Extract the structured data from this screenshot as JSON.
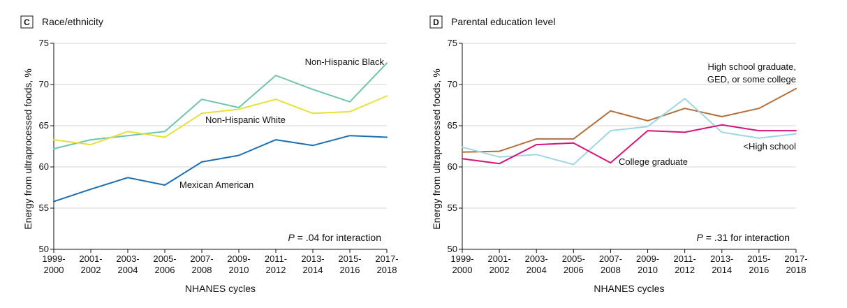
{
  "colors": {
    "teal": "#6fc4ae",
    "yellow": "#e6e13a",
    "blue": "#1b6fb0",
    "brown": "#b26f3c",
    "light_blue": "#9fd6e4",
    "magenta": "#d6137a"
  },
  "chart_data": [
    {
      "type": "line",
      "panel_letter": "C",
      "title": "Race/ethnicity",
      "xlabel": "NHANES cycles",
      "ylabel": "Energy from ultraprocessed foods, %",
      "x_ticks": [
        {
          "top": "1999-",
          "bottom": "2000"
        },
        {
          "top": "2001-",
          "bottom": "2002"
        },
        {
          "top": "2003-",
          "bottom": "2004"
        },
        {
          "top": "2005-",
          "bottom": "2006"
        },
        {
          "top": "2007-",
          "bottom": "2008"
        },
        {
          "top": "2009-",
          "bottom": "2010"
        },
        {
          "top": "2011-",
          "bottom": "2012"
        },
        {
          "top": "2013-",
          "bottom": "2014"
        },
        {
          "top": "2015-",
          "bottom": "2016"
        },
        {
          "top": "2017-",
          "bottom": "2018"
        }
      ],
      "y_ticks": [
        "50",
        "55",
        "60",
        "65",
        "70",
        "75"
      ],
      "ylim": [
        50,
        75
      ],
      "grid": true,
      "annotation": {
        "italic": "P",
        "text": " = .04 for interaction"
      },
      "series": [
        {
          "name": "Non-Hispanic Black",
          "color_key": "teal",
          "values": [
            62.2,
            63.3,
            63.8,
            64.3,
            68.2,
            67.2,
            71.1,
            69.4,
            67.9,
            72.6
          ]
        },
        {
          "name": "Non-Hispanic White",
          "color_key": "yellow",
          "values": [
            63.3,
            62.7,
            64.3,
            63.6,
            66.5,
            67.0,
            68.2,
            66.5,
            66.7,
            68.6
          ]
        },
        {
          "name": "Mexican American",
          "color_key": "blue",
          "values": [
            55.8,
            57.3,
            58.7,
            57.8,
            60.6,
            61.4,
            63.3,
            62.6,
            63.8,
            63.6
          ]
        }
      ]
    },
    {
      "type": "line",
      "panel_letter": "D",
      "title": "Parental education level",
      "xlabel": "NHANES cycles",
      "ylabel": "Energy from ultraprocessed foods, %",
      "x_ticks": [
        {
          "top": "1999-",
          "bottom": "2000"
        },
        {
          "top": "2001-",
          "bottom": "2002"
        },
        {
          "top": "2003-",
          "bottom": "2004"
        },
        {
          "top": "2005-",
          "bottom": "2006"
        },
        {
          "top": "2007-",
          "bottom": "2008"
        },
        {
          "top": "2009-",
          "bottom": "2010"
        },
        {
          "top": "2011-",
          "bottom": "2012"
        },
        {
          "top": "2013-",
          "bottom": "2014"
        },
        {
          "top": "2015-",
          "bottom": "2016"
        },
        {
          "top": "2017-",
          "bottom": "2018"
        }
      ],
      "y_ticks": [
        "50",
        "55",
        "60",
        "65",
        "70",
        "75"
      ],
      "ylim": [
        50,
        75
      ],
      "grid": true,
      "annotation": {
        "italic": "P",
        "text": " = .31 for interaction"
      },
      "series": [
        {
          "name": "High school graduate, GED, or some college",
          "name_lines": [
            "High school graduate,",
            "GED, or some college"
          ],
          "color_key": "brown",
          "values": [
            61.8,
            61.9,
            63.4,
            63.4,
            66.8,
            65.6,
            67.1,
            66.1,
            67.1,
            69.5
          ]
        },
        {
          "name": "<High school",
          "color_key": "light_blue",
          "values": [
            62.4,
            61.2,
            61.5,
            60.3,
            64.4,
            64.9,
            68.3,
            64.2,
            63.5,
            64.0
          ]
        },
        {
          "name": "College graduate",
          "color_key": "magenta",
          "values": [
            61.0,
            60.4,
            62.7,
            62.9,
            60.5,
            64.4,
            64.2,
            65.1,
            64.4,
            64.4
          ]
        }
      ]
    }
  ]
}
